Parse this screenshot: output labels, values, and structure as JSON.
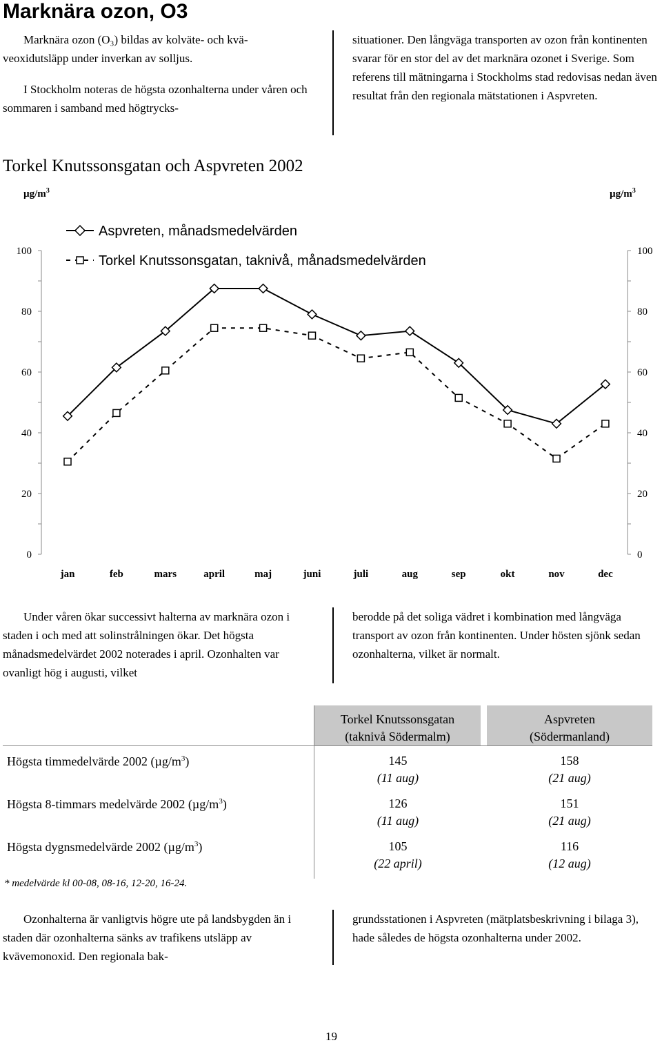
{
  "page": {
    "title": "Marknära ozon, O3",
    "intro_left": [
      "Marknära ozon (O₃) bildas av kolväte- och kvä-veoxidutsläpp under inverkan av solljus.",
      "I Stockholm noteras de högsta ozonhalterna under våren och sommaren i samband med högtrycks-"
    ],
    "intro_right": "situationer. Den långväga transporten av ozon från kontinenten svarar för en stor del av det marknära ozonet i Sverige. Som referens till mätningarna i Stockholms stad  redovisas nedan även resultat från den regionala mätstationen i Aspvreten.",
    "mid_left": "Under våren ökar successivt halterna av marknära ozon i staden i och med att solinstrålningen ökar. Det högsta månadsmedelvärdet 2002 noterades i april. Ozonhalten var ovanligt hög i augusti, vilket",
    "mid_right": "berodde på det soliga vädret i kombination med långväga transport av ozon från kontinenten. Under hösten sjönk sedan ozonhalterna, vilket är normalt.",
    "bottom_left": "Ozonhalterna är vanligtvis högre ute på landsbygden än i staden där ozonhalterna sänks av trafikens utsläpp av kvävemonoxid. Den regionala bak-",
    "bottom_right": "grundsstationen i Aspvreten (mätplatsbeskrivning i bilaga 3), hade således de högsta ozonhalterna under 2002.",
    "page_number": "19"
  },
  "chart_data": {
    "type": "line",
    "title": "Torkel Knutssonsgatan och Aspvreten 2002",
    "ylabel_left": "µg/m",
    "ylabel_right": "µg/m",
    "ylabel_sup": "3",
    "ylim": [
      0,
      100
    ],
    "yticks": [
      "0",
      "20",
      "40",
      "60",
      "80",
      "100"
    ],
    "categories": [
      "jan",
      "feb",
      "mars",
      "april",
      "maj",
      "juni",
      "juli",
      "aug",
      "sep",
      "okt",
      "nov",
      "dec"
    ],
    "legend_position": "top",
    "series": [
      {
        "name": "Aspvreten, månadsmedelvärden",
        "marker": "diamond",
        "line": "solid",
        "values": [
          45.5,
          61.5,
          73.5,
          87.5,
          87.5,
          79,
          72,
          73.5,
          63,
          47.5,
          43,
          56
        ]
      },
      {
        "name": "Torkel Knutssonsgatan, taknivå, månadsmedelvärden",
        "marker": "square",
        "line": "dashed",
        "values": [
          30.5,
          46.5,
          60.5,
          74.5,
          74.5,
          72,
          64.5,
          66.5,
          51.5,
          43,
          31.5,
          43
        ]
      }
    ]
  },
  "stats_table": {
    "columns": [
      "Torkel Knutssonsgatan\n(taknivå Södermalm)",
      "Aspvreten\n(Södermanland)"
    ],
    "col1_line1": "Torkel Knutssonsgatan",
    "col1_line2": "(taknivå Södermalm)",
    "col2_line1": "Aspvreten",
    "col2_line2": "(Södermanland)",
    "rows": [
      {
        "label": "Högsta timmedelvärde 2002 (µg/m",
        "sup": "3",
        "label_end": ")",
        "v1": "145",
        "d1": "(11 aug)",
        "v2": "158",
        "d2": "(21 aug)"
      },
      {
        "label": "Högsta 8-timmars medelvärde 2002 (µg/m",
        "sup": "3",
        "label_end": ")",
        "v1": "126",
        "d1": "(11 aug)",
        "v2": "151",
        "d2": "(21 aug)"
      },
      {
        "label": "Högsta dygnsmedelvärde 2002 (µg/m",
        "sup": "3",
        "label_end": ")",
        "v1": "105",
        "d1": "(22 april)",
        "v2": "116",
        "d2": "(12 aug)"
      }
    ],
    "footnote": "* medelvärde kl 00-08, 08-16, 12-20, 16-24."
  }
}
